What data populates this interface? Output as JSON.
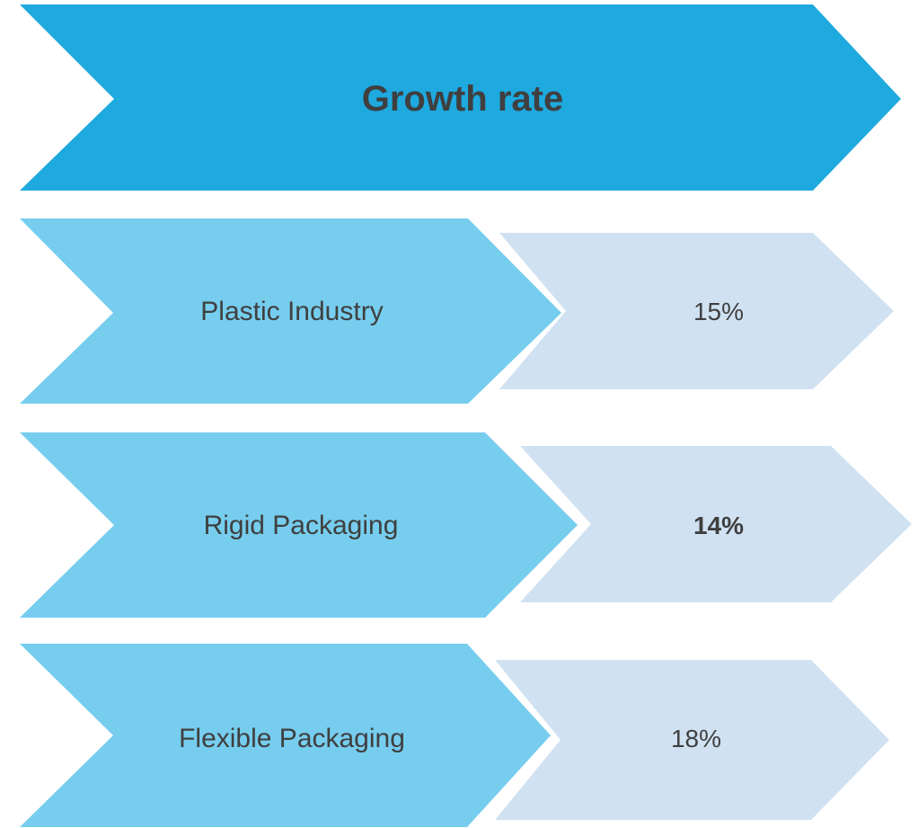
{
  "header": {
    "title": "Growth rate"
  },
  "rows": [
    {
      "label": "Plastic Industry",
      "value": "15%",
      "value_bold": false
    },
    {
      "label": "Rigid Packaging",
      "value": "14%",
      "value_bold": true
    },
    {
      "label": "Flexible Packaging",
      "value": "18%",
      "value_bold": false
    }
  ],
  "colors": {
    "header_fill": "#1EA9DF",
    "label_chevron_fill": "#76CDEE",
    "value_chevron_fill": "#D0E2F2",
    "text": "#3F3F3F"
  }
}
